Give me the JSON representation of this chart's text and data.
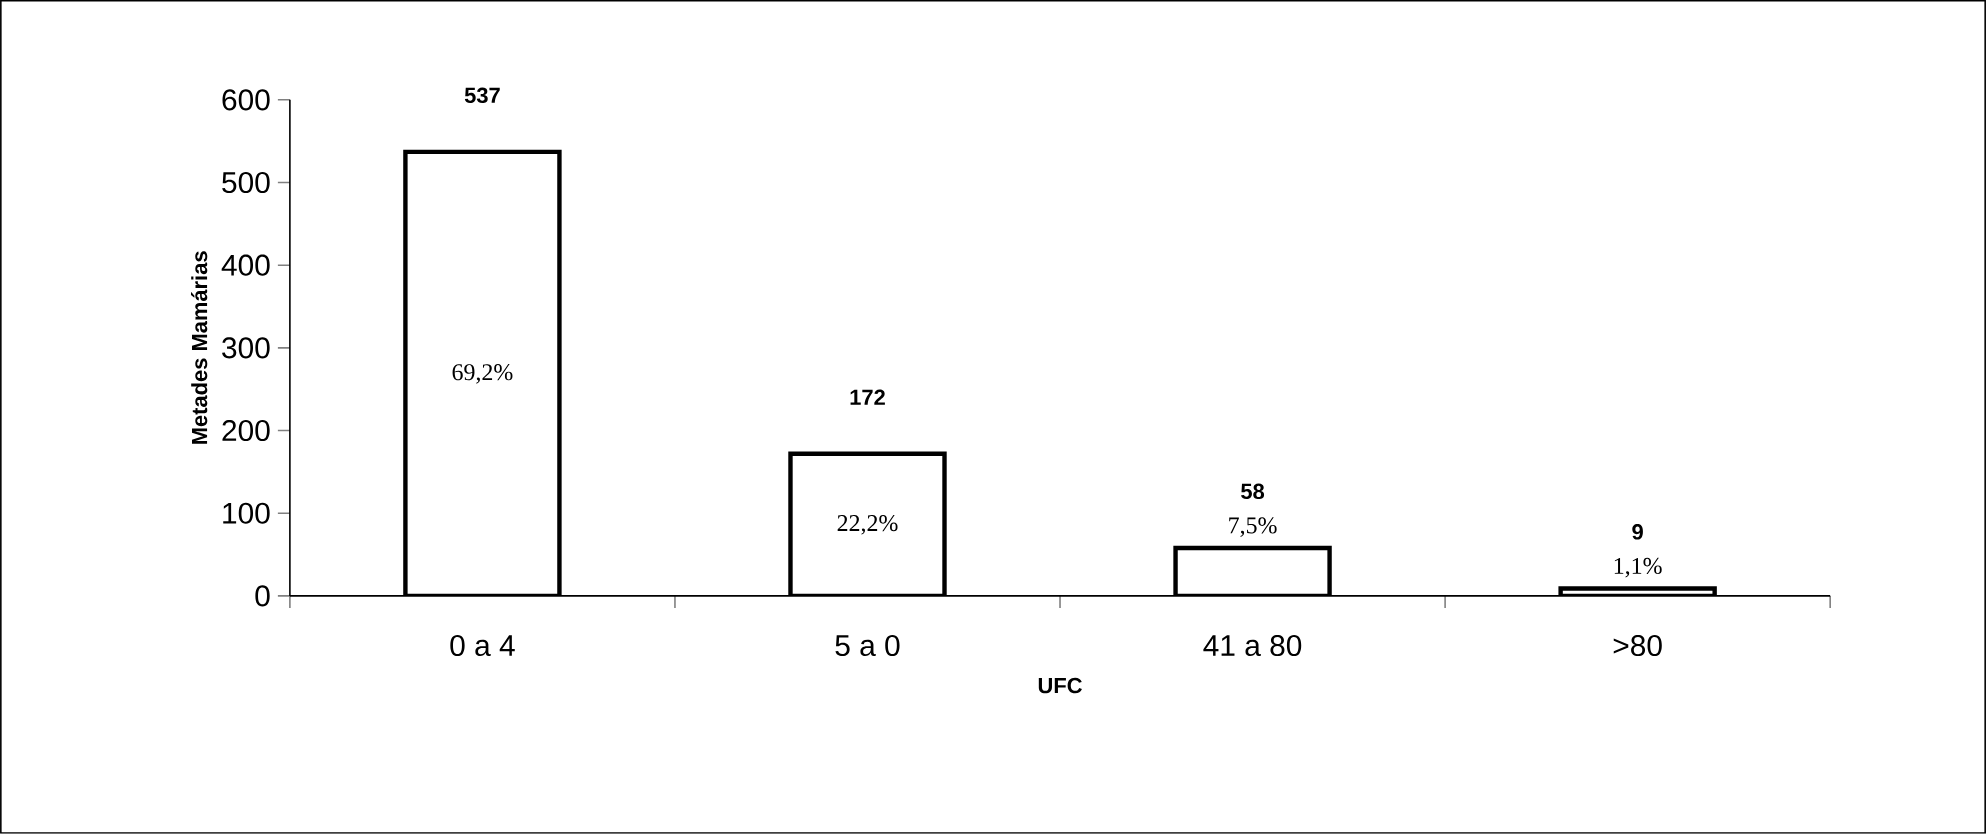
{
  "chart_data": {
    "type": "bar",
    "xlabel": "UFC",
    "ylabel": "Metades Mamárias",
    "categories": [
      "0 a 4",
      "5 a 0",
      "41 a 80",
      ">80"
    ],
    "values": [
      537,
      172,
      58,
      9
    ],
    "color": "#ffffff",
    "ylim": [
      0,
      600
    ],
    "yticks": [
      0,
      100,
      200,
      300,
      400,
      500,
      600
    ],
    "data_labels": true,
    "grid": false,
    "annotations": [
      "69,2%",
      "22,2%",
      "7,5%",
      "1,1%"
    ]
  }
}
